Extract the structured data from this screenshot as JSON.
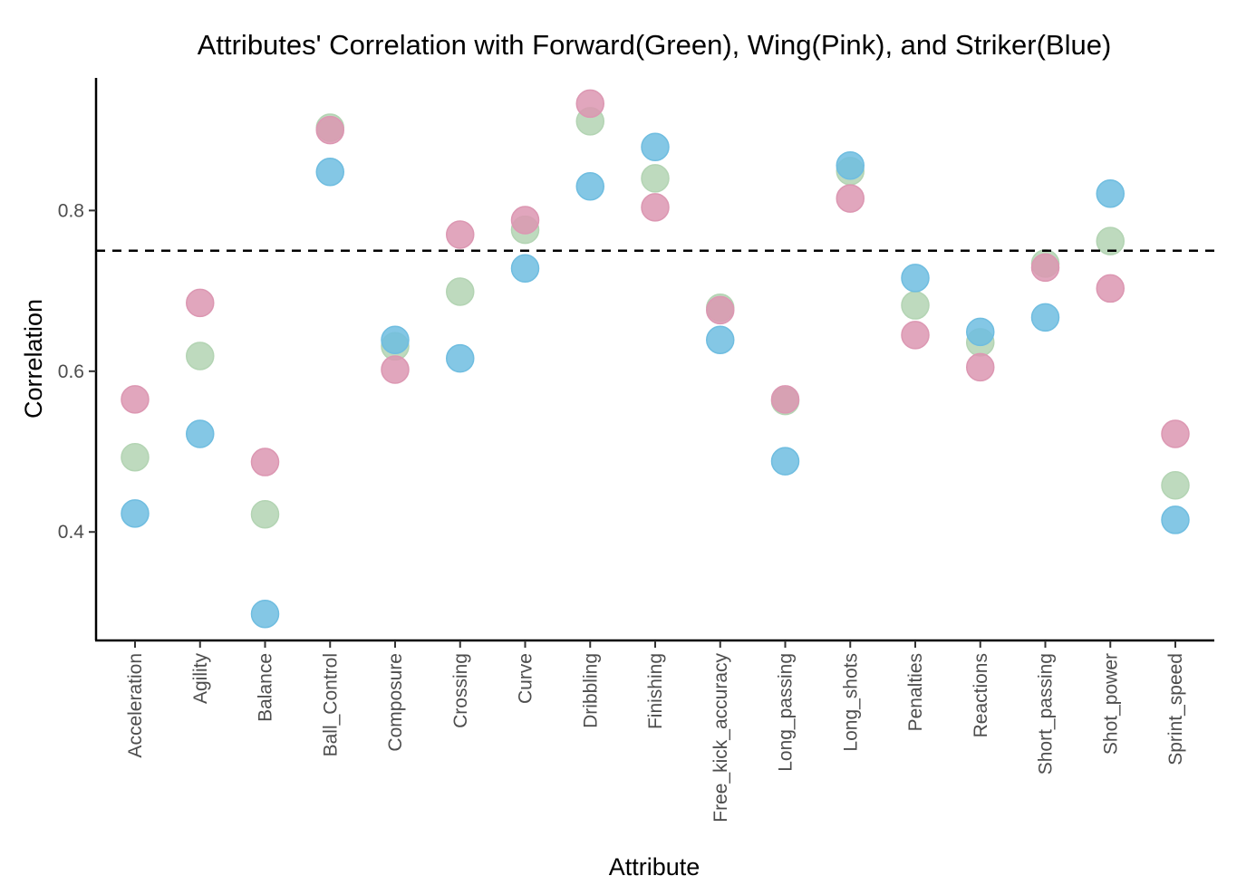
{
  "chart_data": {
    "type": "scatter",
    "title": "Attributes' Correlation with Forward(Green), Wing(Pink), and Striker(Blue)",
    "xlabel": "Attribute",
    "ylabel": "Correlation",
    "ylim": [
      0.265,
      0.965
    ],
    "yticks": [
      0.4,
      0.6,
      0.8
    ],
    "ytick_labels": [
      "0.4",
      "0.6",
      "0.8"
    ],
    "reference_line": {
      "y": 0.75,
      "style": "dashed",
      "color": "#000000"
    },
    "grid": false,
    "legend": "none",
    "categories": [
      "Acceleration",
      "Agility",
      "Balance",
      "Ball_Control",
      "Composure",
      "Crossing",
      "Curve",
      "Dribbling",
      "Finishing",
      "Free_kick_accuracy",
      "Long_passing",
      "Long_shots",
      "Penalties",
      "Reactions",
      "Short_passing",
      "Shot_power",
      "Sprint_speed"
    ],
    "series": [
      {
        "color": "#b3d4b3",
        "values": [
          0.493,
          0.619,
          0.422,
          0.903,
          0.631,
          0.699,
          0.776,
          0.911,
          0.84,
          0.679,
          0.563,
          0.849,
          0.682,
          0.636,
          0.734,
          0.762,
          0.458
        ]
      },
      {
        "color": "#dc97b2",
        "values": [
          0.565,
          0.685,
          0.487,
          0.9,
          0.602,
          0.77,
          0.788,
          0.933,
          0.804,
          0.676,
          0.565,
          0.815,
          0.645,
          0.605,
          0.729,
          0.703,
          0.522
        ]
      },
      {
        "color": "#6fbde0",
        "values": [
          0.423,
          0.522,
          0.298,
          0.848,
          0.639,
          0.616,
          0.728,
          0.83,
          0.879,
          0.639,
          0.488,
          0.856,
          0.716,
          0.649,
          0.667,
          0.821,
          0.415
        ]
      }
    ]
  }
}
